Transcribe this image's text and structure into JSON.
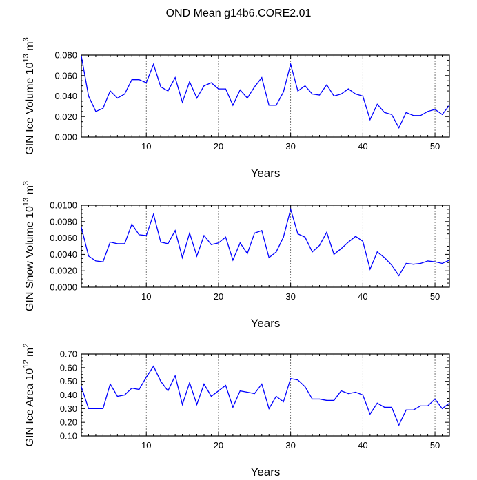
{
  "figure": {
    "title": "OND Mean g14b6.CORE2.01"
  },
  "chart_data": [
    {
      "type": "line",
      "ylabel_main": "GIN Ice Volume 10",
      "ylabel_exp": "13",
      "ylabel_unit": " m",
      "ylabel_unit_exp": "3",
      "xlabel": "Years",
      "xlim": [
        1,
        52
      ],
      "ylim": [
        0.0,
        0.08
      ],
      "yticks": [
        "0.000",
        "0.020",
        "0.040",
        "0.060",
        "0.080"
      ],
      "xticks": [
        "10",
        "20",
        "30",
        "40",
        "50"
      ],
      "series": [
        {
          "name": "Ice Volume",
          "color": "#0000ff",
          "x": [
            1,
            2,
            3,
            4,
            5,
            6,
            7,
            8,
            9,
            10,
            11,
            12,
            13,
            14,
            15,
            16,
            17,
            18,
            19,
            20,
            21,
            22,
            23,
            24,
            25,
            26,
            27,
            28,
            29,
            30,
            31,
            32,
            33,
            34,
            35,
            36,
            37,
            38,
            39,
            40,
            41,
            42,
            43,
            44,
            45,
            46,
            47,
            48,
            49,
            50,
            51,
            52
          ],
          "values": [
            0.079,
            0.04,
            0.025,
            0.028,
            0.045,
            0.038,
            0.042,
            0.056,
            0.056,
            0.053,
            0.071,
            0.049,
            0.045,
            0.058,
            0.034,
            0.054,
            0.038,
            0.05,
            0.053,
            0.047,
            0.047,
            0.031,
            0.046,
            0.038,
            0.049,
            0.058,
            0.031,
            0.031,
            0.044,
            0.071,
            0.045,
            0.05,
            0.042,
            0.041,
            0.051,
            0.04,
            0.042,
            0.047,
            0.042,
            0.04,
            0.017,
            0.032,
            0.024,
            0.022,
            0.009,
            0.024,
            0.021,
            0.021,
            0.025,
            0.027,
            0.022,
            0.031
          ]
        }
      ]
    },
    {
      "type": "line",
      "ylabel_main": "GIN Snow Volume 10",
      "ylabel_exp": "13",
      "ylabel_unit": " m",
      "ylabel_unit_exp": "3",
      "xlabel": "Years",
      "xlim": [
        1,
        52
      ],
      "ylim": [
        0.0,
        0.01
      ],
      "yticks": [
        "0.0000",
        "0.0020",
        "0.0040",
        "0.0060",
        "0.0080",
        "0.0100"
      ],
      "xticks": [
        "10",
        "20",
        "30",
        "40",
        "50"
      ],
      "series": [
        {
          "name": "Snow Volume",
          "color": "#0000ff",
          "x": [
            1,
            2,
            3,
            4,
            5,
            6,
            7,
            8,
            9,
            10,
            11,
            12,
            13,
            14,
            15,
            16,
            17,
            18,
            19,
            20,
            21,
            22,
            23,
            24,
            25,
            26,
            27,
            28,
            29,
            30,
            31,
            32,
            33,
            34,
            35,
            36,
            37,
            38,
            39,
            40,
            41,
            42,
            43,
            44,
            45,
            46,
            47,
            48,
            49,
            50,
            51,
            52
          ],
          "values": [
            0.0073,
            0.0038,
            0.0032,
            0.0031,
            0.0055,
            0.0053,
            0.0053,
            0.0077,
            0.0064,
            0.0063,
            0.0089,
            0.0055,
            0.0053,
            0.0069,
            0.0036,
            0.0066,
            0.0038,
            0.0063,
            0.0052,
            0.0054,
            0.0061,
            0.0033,
            0.0054,
            0.0041,
            0.0066,
            0.0069,
            0.0036,
            0.0043,
            0.0061,
            0.0095,
            0.0065,
            0.0061,
            0.0043,
            0.0051,
            0.0067,
            0.004,
            0.0047,
            0.0055,
            0.0062,
            0.0056,
            0.0022,
            0.0043,
            0.0036,
            0.0027,
            0.0014,
            0.0029,
            0.0028,
            0.0029,
            0.0032,
            0.0031,
            0.0029,
            0.0033
          ]
        }
      ]
    },
    {
      "type": "line",
      "ylabel_main": "GIN Ice Area 10",
      "ylabel_exp": "12",
      "ylabel_unit": " m",
      "ylabel_unit_exp": "2",
      "xlabel": "Years",
      "xlim": [
        1,
        52
      ],
      "ylim": [
        0.1,
        0.7
      ],
      "yticks": [
        "0.10",
        "0.20",
        "0.30",
        "0.40",
        "0.50",
        "0.60",
        "0.70"
      ],
      "xticks": [
        "10",
        "20",
        "30",
        "40",
        "50"
      ],
      "series": [
        {
          "name": "Ice Area",
          "color": "#0000ff",
          "x": [
            1,
            2,
            3,
            4,
            5,
            6,
            7,
            8,
            9,
            10,
            11,
            12,
            13,
            14,
            15,
            16,
            17,
            18,
            19,
            20,
            21,
            22,
            23,
            24,
            25,
            26,
            27,
            28,
            29,
            30,
            31,
            32,
            33,
            34,
            35,
            36,
            37,
            38,
            39,
            40,
            41,
            42,
            43,
            44,
            45,
            46,
            47,
            48,
            49,
            50,
            51,
            52
          ],
          "values": [
            0.46,
            0.3,
            0.3,
            0.3,
            0.48,
            0.39,
            0.4,
            0.45,
            0.44,
            0.53,
            0.61,
            0.5,
            0.43,
            0.54,
            0.33,
            0.49,
            0.33,
            0.48,
            0.39,
            0.43,
            0.47,
            0.31,
            0.43,
            0.42,
            0.41,
            0.48,
            0.3,
            0.39,
            0.35,
            0.52,
            0.51,
            0.46,
            0.37,
            0.37,
            0.36,
            0.36,
            0.43,
            0.41,
            0.42,
            0.4,
            0.26,
            0.34,
            0.31,
            0.31,
            0.18,
            0.29,
            0.29,
            0.32,
            0.32,
            0.37,
            0.3,
            0.34
          ]
        }
      ]
    }
  ]
}
